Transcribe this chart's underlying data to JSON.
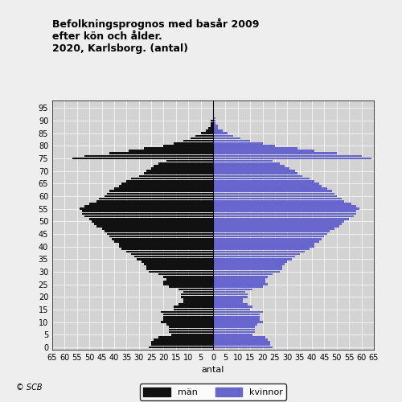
{
  "title": "Befolkningsprognos med basår 2009\nefter kön och ålder.\n2020, Karlsborg. (antal)",
  "xlabel": "antal",
  "figure_bg": "#eeeeee",
  "plot_bg": "#d3d3d3",
  "man_color": "#111111",
  "woman_color": "#6666cc",
  "grid_color": "#ffffff",
  "legend_label_men": "män",
  "legend_label_women": "kvinnor",
  "copyright": "© SCB",
  "ages": [
    0,
    1,
    2,
    3,
    4,
    5,
    6,
    7,
    8,
    9,
    10,
    11,
    12,
    13,
    14,
    15,
    16,
    17,
    18,
    19,
    20,
    21,
    22,
    23,
    24,
    25,
    26,
    27,
    28,
    29,
    30,
    31,
    32,
    33,
    34,
    35,
    36,
    37,
    38,
    39,
    40,
    41,
    42,
    43,
    44,
    45,
    46,
    47,
    48,
    49,
    50,
    51,
    52,
    53,
    54,
    55,
    56,
    57,
    58,
    59,
    60,
    61,
    62,
    63,
    64,
    65,
    66,
    67,
    68,
    69,
    70,
    71,
    72,
    73,
    74,
    75,
    76,
    77,
    78,
    79,
    80,
    81,
    82,
    83,
    84,
    85,
    86,
    87,
    88,
    89,
    90,
    91,
    92,
    93,
    94,
    95,
    96,
    97
  ],
  "men": [
    26,
    25,
    25,
    24,
    22,
    17,
    18,
    18,
    18,
    19,
    21,
    20,
    20,
    20,
    21,
    16,
    16,
    14,
    12,
    12,
    13,
    13,
    12,
    14,
    18,
    20,
    20,
    19,
    20,
    22,
    26,
    27,
    27,
    28,
    29,
    31,
    32,
    33,
    35,
    37,
    38,
    38,
    40,
    41,
    42,
    43,
    44,
    45,
    47,
    48,
    49,
    50,
    52,
    53,
    53,
    54,
    52,
    50,
    47,
    46,
    44,
    43,
    42,
    40,
    38,
    37,
    35,
    33,
    30,
    28,
    27,
    25,
    24,
    22,
    19,
    57,
    52,
    42,
    34,
    28,
    20,
    16,
    12,
    9,
    7,
    5,
    3,
    2,
    1,
    1,
    1,
    0,
    0,
    0,
    0,
    0,
    0,
    0
  ],
  "women": [
    24,
    23,
    23,
    22,
    21,
    16,
    17,
    17,
    17,
    18,
    20,
    19,
    19,
    19,
    20,
    15,
    16,
    14,
    12,
    12,
    14,
    14,
    13,
    16,
    20,
    22,
    21,
    21,
    22,
    24,
    27,
    28,
    28,
    29,
    30,
    32,
    33,
    35,
    37,
    39,
    41,
    41,
    43,
    44,
    45,
    46,
    47,
    49,
    51,
    52,
    53,
    55,
    57,
    58,
    58,
    59,
    58,
    56,
    53,
    52,
    50,
    49,
    48,
    46,
    44,
    43,
    41,
    39,
    36,
    34,
    33,
    31,
    29,
    27,
    24,
    64,
    60,
    50,
    41,
    34,
    25,
    20,
    15,
    11,
    8,
    6,
    4,
    2,
    2,
    1,
    1,
    1,
    0,
    0,
    0,
    0,
    0,
    0
  ],
  "xlim": [
    -65,
    65
  ],
  "ylim": [
    -1,
    98
  ],
  "xtick_step": 5,
  "ytick_step": 5,
  "bar_height": 0.85
}
